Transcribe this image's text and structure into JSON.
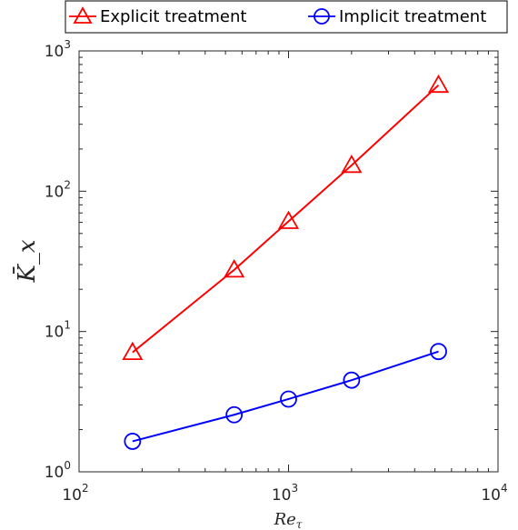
{
  "chart_data": {
    "type": "line",
    "xscale": "log",
    "yscale": "log",
    "xlim": [
      100,
      10000
    ],
    "ylim": [
      1,
      1000
    ],
    "xlabel": "Re_τ",
    "ylabel": "K̄_x",
    "grid": false,
    "legend_position": "top, outside plot, horizontal",
    "xticks": [
      {
        "value": 100,
        "base": "10",
        "exp": "2"
      },
      {
        "value": 1000,
        "base": "10",
        "exp": "3"
      },
      {
        "value": 10000,
        "base": "10",
        "exp": "4"
      }
    ],
    "yticks": [
      {
        "value": 1,
        "base": "10",
        "exp": "0"
      },
      {
        "value": 10,
        "base": "10",
        "exp": "1"
      },
      {
        "value": 100,
        "base": "10",
        "exp": "2"
      },
      {
        "value": 1000,
        "base": "10",
        "exp": "3"
      }
    ],
    "series": [
      {
        "name": "Explicit treatment",
        "color": "#ff0000",
        "marker": "triangle",
        "x": [
          180,
          550,
          1000,
          2000,
          5200
        ],
        "y": [
          7.1,
          27.5,
          61,
          153,
          570
        ]
      },
      {
        "name": "Implicit treatment",
        "color": "#0000ff",
        "marker": "circle",
        "x": [
          180,
          550,
          1000,
          2000,
          5200
        ],
        "y": [
          1.65,
          2.55,
          3.3,
          4.5,
          7.2
        ]
      }
    ]
  }
}
